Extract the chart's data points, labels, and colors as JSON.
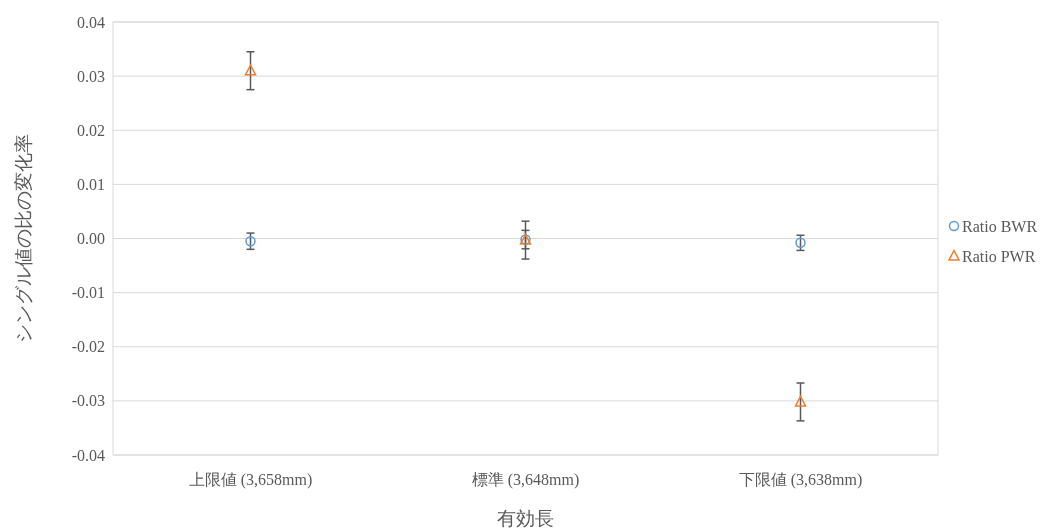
{
  "chart_data": {
    "type": "scatter",
    "xlabel": "有効長",
    "ylabel": "シングル値の比の変化率",
    "categories": [
      "上限値 (3,658mm)",
      "標準 (3,648mm)",
      "下限値 (3,638mm)"
    ],
    "series": [
      {
        "name": "Ratio BWR",
        "color": "#5b9bd5",
        "marker": "circle",
        "values": [
          -0.0005,
          -0.0002,
          -0.0008
        ],
        "errors": [
          0.0015,
          0.0017,
          0.0014
        ]
      },
      {
        "name": "Ratio PWR",
        "color": "#ed7d31",
        "marker": "triangle",
        "values": [
          0.031,
          -0.0003,
          -0.0302
        ],
        "errors": [
          0.0035,
          0.0035,
          0.0035
        ]
      }
    ],
    "ylim": [
      -0.04,
      0.04
    ],
    "yticks": [
      {
        "value": -0.04,
        "label": "-0.04"
      },
      {
        "value": -0.03,
        "label": "-0.03"
      },
      {
        "value": -0.02,
        "label": "-0.02"
      },
      {
        "value": -0.01,
        "label": "-0.01"
      },
      {
        "value": 0,
        "label": "0.00"
      },
      {
        "value": 0.01,
        "label": "0.01"
      },
      {
        "value": 0.02,
        "label": "0.02"
      },
      {
        "value": 0.03,
        "label": "0.03"
      },
      {
        "value": 0.04,
        "label": "0.04"
      }
    ],
    "grid": "y",
    "legend": "right"
  }
}
